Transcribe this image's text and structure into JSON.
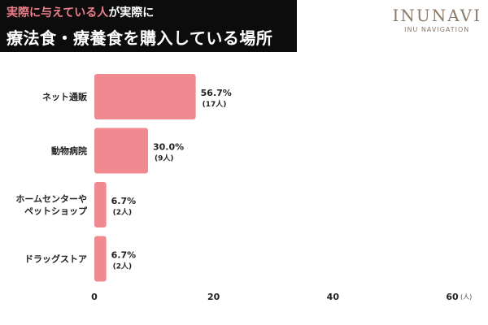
{
  "header": {
    "title_line1_highlight": "実際に与えている人",
    "title_line1_rest": "が実際に",
    "title_line2": "療法食・療養食を購入している場所"
  },
  "brand": {
    "name": "INUNAVI",
    "subtitle": "INU NAVIGATION"
  },
  "chart_data": {
    "type": "bar",
    "orientation": "horizontal",
    "categories": [
      [
        "ネット通販"
      ],
      [
        "動物病院"
      ],
      [
        "ホームセンターや",
        "ペットショップ"
      ],
      [
        "ドラッグストア"
      ]
    ],
    "values": [
      17,
      9,
      2,
      2
    ],
    "percent_labels": [
      "56.7%",
      "30.0%",
      "6.7%",
      "6.7%"
    ],
    "count_labels": [
      "(17人)",
      "(9人)",
      "(2人)",
      "(2人)"
    ],
    "xlim": [
      0,
      60
    ],
    "xticks": [
      0,
      20,
      40,
      60
    ],
    "x_unit": "(人)",
    "bar_color": "#f08a90",
    "grid": false
  }
}
